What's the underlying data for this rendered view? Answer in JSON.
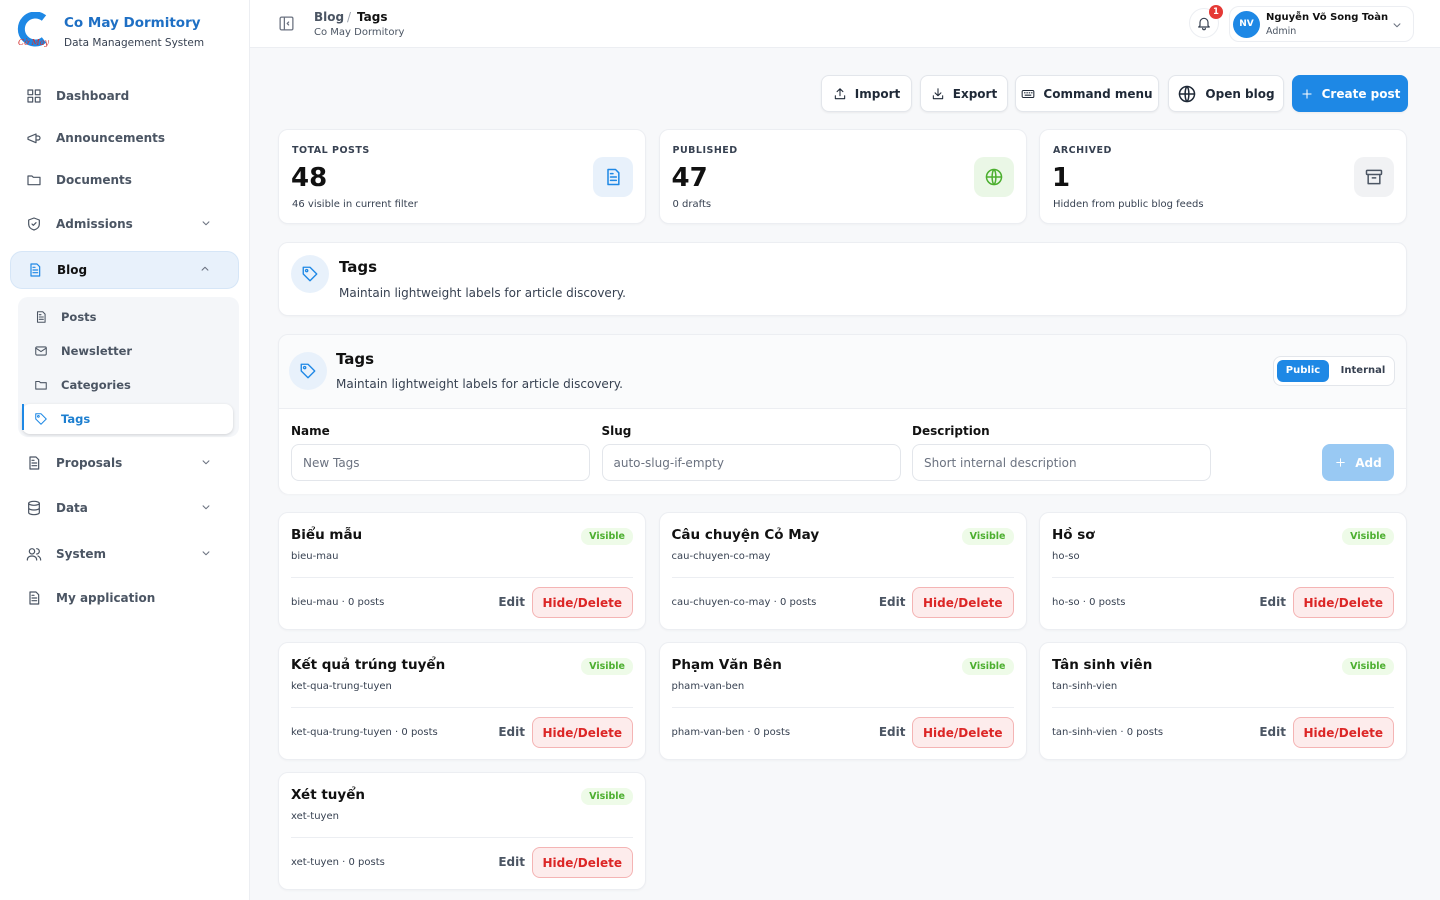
{
  "brand": {
    "title": "Co May Dormitory",
    "subtitle": "Data Management System",
    "logo_text": "Cờ May"
  },
  "nav": [
    {
      "label": "Dashboard",
      "expandable": false
    },
    {
      "label": "Announcements",
      "expandable": false
    },
    {
      "label": "Documents",
      "expandable": false
    },
    {
      "label": "Admissions",
      "expandable": true
    },
    {
      "label": "Blog",
      "expandable": true,
      "active": true,
      "children": [
        "Posts",
        "Newsletter",
        "Categories",
        "Tags"
      ],
      "active_child": 3
    },
    {
      "label": "Proposals",
      "expandable": true
    },
    {
      "label": "Data",
      "expandable": true
    },
    {
      "label": "System",
      "expandable": true
    },
    {
      "label": "My application",
      "expandable": false
    }
  ],
  "header": {
    "breadcrumb": [
      "Blog",
      "Tags"
    ],
    "separator": "/",
    "subtitle": "Co May Dormitory",
    "notification_count": "1",
    "user": {
      "initials": "NV",
      "name": "Nguyễn Võ Song Toàn",
      "role": "Admin"
    }
  },
  "toolbar": [
    "Import",
    "Export",
    "Command menu",
    "Open blog",
    "Create post"
  ],
  "stats": [
    {
      "label": "TOTAL POSTS",
      "value": "48",
      "note": "46 visible in current filter"
    },
    {
      "label": "PUBLISHED",
      "value": "47",
      "note": "0 drafts"
    },
    {
      "label": "ARCHIVED",
      "value": "1",
      "note": "Hidden from public blog feeds"
    }
  ],
  "intro": {
    "title": "Tags",
    "description": "Maintain lightweight labels for article discovery."
  },
  "panel": {
    "title": "Tags",
    "description": "Maintain lightweight labels for article discovery.",
    "toggle": [
      "Public",
      "Internal"
    ],
    "form": {
      "fields": [
        {
          "label": "Name",
          "placeholder": "New Tags"
        },
        {
          "label": "Slug",
          "placeholder": "auto-slug-if-empty"
        },
        {
          "label": "Description",
          "placeholder": "Short internal description"
        }
      ],
      "submit": "Add"
    }
  },
  "tags": [
    {
      "name": "Biểu mẫu",
      "slug": "bieu-mau",
      "status": "Visible",
      "footer": "bieu-mau · 0 posts",
      "edit": "Edit",
      "remove": "Hide/Delete"
    },
    {
      "name": "Câu chuyện Cỏ May",
      "slug": "cau-chuyen-co-may",
      "status": "Visible",
      "footer": "cau-chuyen-co-may · 0 posts",
      "edit": "Edit",
      "remove": "Hide/Delete"
    },
    {
      "name": "Hồ sơ",
      "slug": "ho-so",
      "status": "Visible",
      "footer": "ho-so · 0 posts",
      "edit": "Edit",
      "remove": "Hide/Delete"
    },
    {
      "name": "Kết quả trúng tuyển",
      "slug": "ket-qua-trung-tuyen",
      "status": "Visible",
      "footer": "ket-qua-trung-tuyen · 0 posts",
      "edit": "Edit",
      "remove": "Hide/Delete"
    },
    {
      "name": "Phạm Văn Bên",
      "slug": "pham-van-ben",
      "status": "Visible",
      "footer": "pham-van-ben · 0 posts",
      "edit": "Edit",
      "remove": "Hide/Delete"
    },
    {
      "name": "Tân sinh viên",
      "slug": "tan-sinh-vien",
      "status": "Visible",
      "footer": "tan-sinh-vien · 0 posts",
      "edit": "Edit",
      "remove": "Hide/Delete"
    },
    {
      "name": "Xét tuyển",
      "slug": "xet-tuyen",
      "status": "Visible",
      "footer": "xet-tuyen · 0 posts",
      "edit": "Edit",
      "remove": "Hide/Delete"
    }
  ]
}
